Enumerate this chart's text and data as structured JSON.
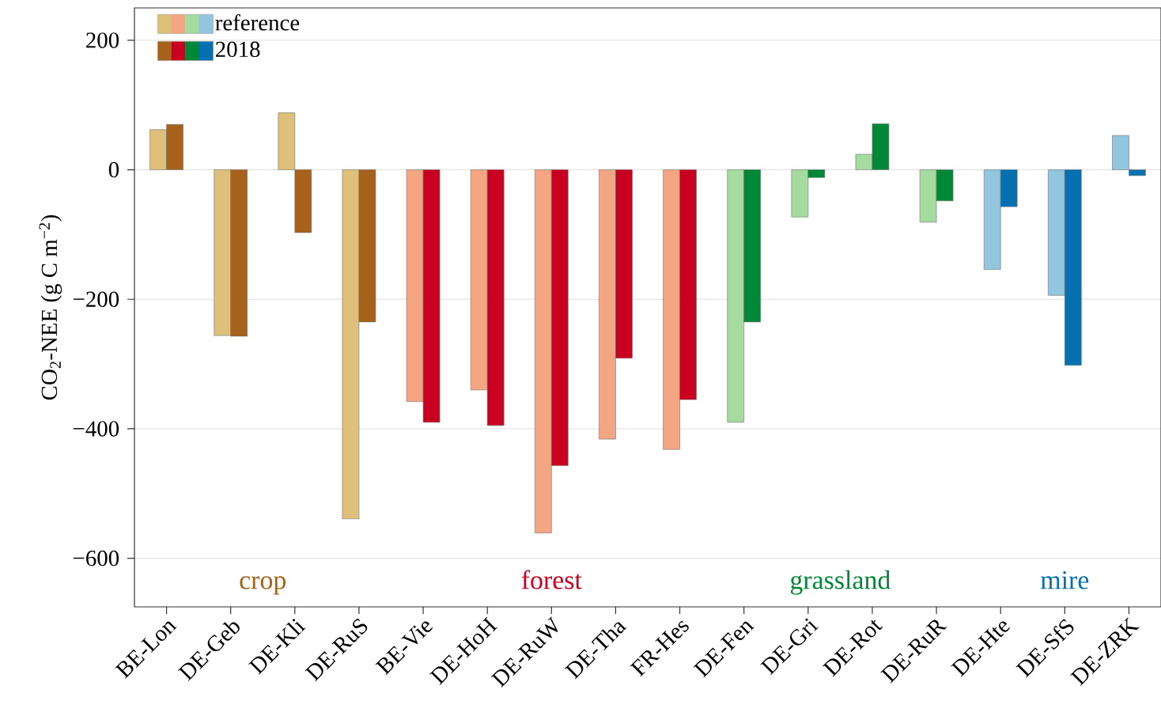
{
  "chart_data": {
    "type": "bar",
    "ylabel": "CO$_{2}$-NEE (g C m$^{−2}$)",
    "categories": [
      "BE-Lon",
      "DE-Geb",
      "DE-Kli",
      "DE-RuS",
      "BE-Vie",
      "DE-HoH",
      "DE-RuW",
      "DE-Tha",
      "FR-Hes",
      "DE-Fen",
      "DE-Gri",
      "DE-Rot",
      "DE-RuR",
      "DE-Hte",
      "DE-SfS",
      "DE-ZRK"
    ],
    "series": [
      {
        "name": "reference",
        "colors": [
          "#dfc07a",
          "#dfc07a",
          "#dfc07a",
          "#dfc07a",
          "#f4a582",
          "#f4a582",
          "#f4a582",
          "#f4a582",
          "#f4a582",
          "#a6dba0",
          "#a6dba0",
          "#a6dba0",
          "#a6dba0",
          "#92c5de",
          "#92c5de",
          "#92c5de"
        ],
        "values": [
          62,
          -256,
          88,
          -539,
          -358,
          -340,
          -561,
          -416,
          -432,
          -390,
          -73,
          24,
          -81,
          -154,
          -194,
          53
        ]
      },
      {
        "name": "2018",
        "colors": [
          "#a6611a",
          "#a6611a",
          "#a6611a",
          "#a6611a",
          "#ca0020",
          "#ca0020",
          "#ca0020",
          "#ca0020",
          "#ca0020",
          "#008837",
          "#008837",
          "#008837",
          "#008837",
          "#0571b0",
          "#0571b0",
          "#0571b0"
        ],
        "values": [
          70,
          -257,
          -97,
          -235,
          -390,
          -395,
          -457,
          -291,
          -355,
          -235,
          -12,
          71,
          -48,
          -57,
          -302,
          -9
        ]
      }
    ],
    "annotations": [
      "crop",
      "forest",
      "grassland",
      "mire"
    ],
    "ylim": [
      -675,
      250
    ],
    "yticks": [
      {
        "value": -600,
        "label": "−600"
      },
      {
        "value": -400,
        "label": "−400"
      },
      {
        "value": -200,
        "label": "−200"
      },
      0,
      200
    ],
    "grid": "y",
    "legend": "top left"
  }
}
